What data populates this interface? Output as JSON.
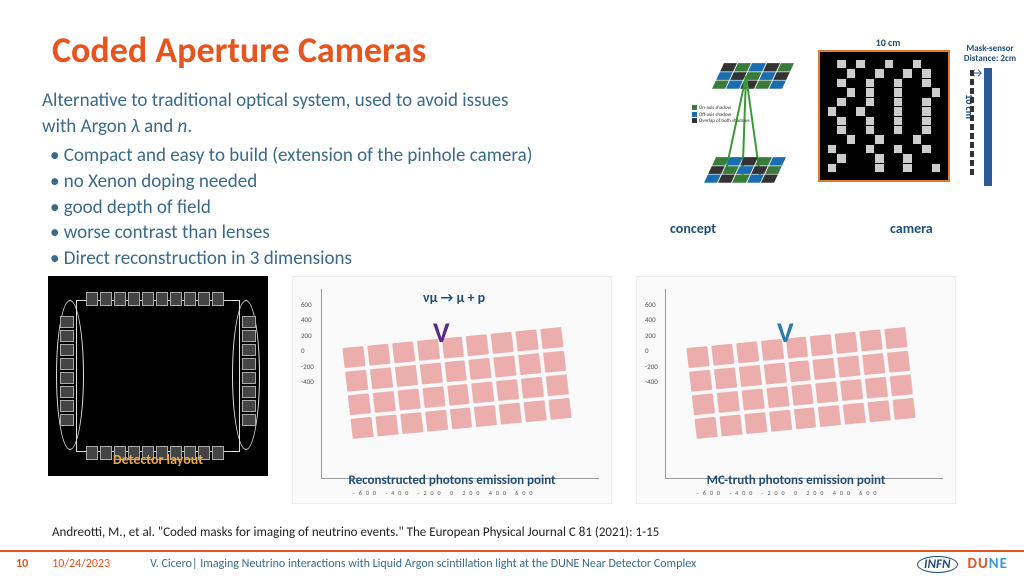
{
  "title": "Coded Aperture Cameras",
  "intro_line1": "Alternative to traditional optical system, used to avoid issues",
  "intro_line2_a": "with Argon ",
  "intro_line2_b": " and ",
  "intro_line2_c": ".",
  "lambda": "λ",
  "n_sym": "n",
  "bullets": [
    "Compact and easy to build (extension of the pinhole camera)",
    "no Xenon doping needed",
    "good depth of field",
    "worse contrast than lenses",
    "Direct reconstruction in 3 dimensions"
  ],
  "labels": {
    "concept": "concept",
    "camera": "camera",
    "detector": "Detector layout",
    "recon": "Reconstructed photons emission point",
    "mc": "MC-truth photons emission point",
    "mask_sensor": "Mask-sensor Distance: 2cm",
    "ten_cm": "10 cm",
    "formula": "νµ → µ + p"
  },
  "legend": {
    "on": "On-axis shadow",
    "off": "Off-axis shadow",
    "overlap": "Overlap of both shadows"
  },
  "citation": "Andreotti, M., et al. \"Coded masks for imaging of neutrino events.\" The European Physical Journal C 81 (2021): 1-15",
  "footer": {
    "page": "10",
    "date": "10/24/2023",
    "author": "V. Cicero| Imaging Neutrino interactions with Liquid Argon scintillation light at the DUNE Near Detector Complex",
    "infn": "INFN",
    "dune1": "DU",
    "dune2": "NE"
  },
  "colors": {
    "title": "#e8541e",
    "body": "#3a6a8a",
    "darkblue": "#1f4e79",
    "track_recon": "#5a2a8a",
    "track_mc": "#2a7aaa"
  },
  "plot": {
    "yticks": [
      "600",
      "400",
      "200",
      "0",
      "-200",
      "-400"
    ],
    "xticks": "-600 -400 -200 0 200 400 600"
  },
  "mask_cells_white": [
    1,
    3,
    6,
    9,
    14,
    17,
    20,
    22,
    25,
    28,
    31,
    34,
    38,
    40,
    43,
    47,
    49,
    52,
    55,
    58,
    60,
    63,
    67,
    70,
    73,
    76,
    79,
    82,
    85,
    88,
    91,
    94,
    98,
    101,
    105,
    108,
    112,
    115,
    118,
    121,
    125,
    128,
    132,
    137,
    140,
    143
  ]
}
